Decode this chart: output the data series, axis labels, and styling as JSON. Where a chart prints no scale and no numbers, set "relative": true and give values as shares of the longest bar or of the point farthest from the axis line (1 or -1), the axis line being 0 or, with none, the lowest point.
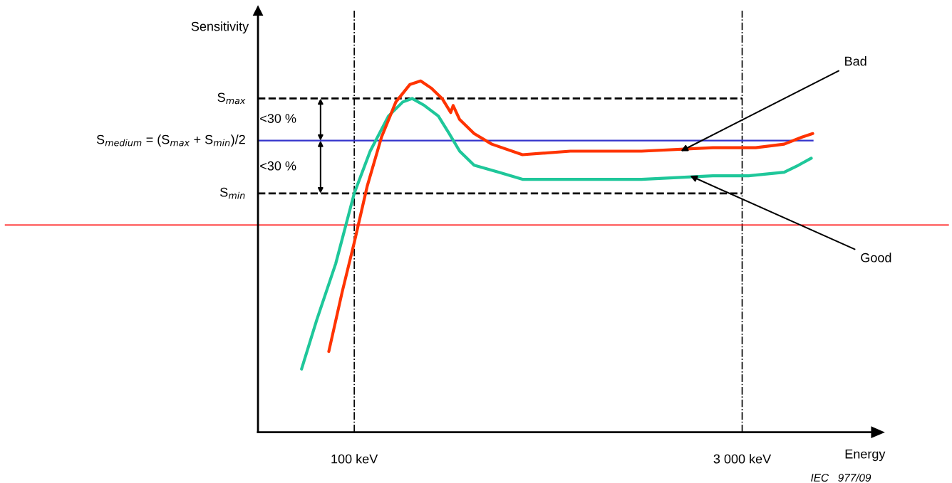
{
  "chart_data": {
    "type": "line",
    "relative": true,
    "ylabel": "Sensitivity",
    "xlabel": "Energy",
    "log": "x",
    "xlim": [
      43,
      9290
    ],
    "xticks": [
      {
        "value": 100,
        "label": "100 keV"
      },
      {
        "value": 3000,
        "label": "3 000 keV"
      }
    ],
    "series": [
      {
        "color": "#1fc79a",
        "x": [
          63,
          72,
          85,
          100,
          115,
          135,
          153,
          166,
          185,
          209,
          230,
          252,
          286,
          356,
          437,
          665,
          1242,
          2320,
          3172,
          4336,
          4914,
          5500
        ],
        "values": [
          0.18,
          0.32,
          0.48,
          0.68,
          0.8,
          0.9,
          0.94,
          0.95,
          0.93,
          0.9,
          0.85,
          0.8,
          0.76,
          0.74,
          0.72,
          0.72,
          0.72,
          0.73,
          0.73,
          0.74,
          0.76,
          0.78
        ]
      },
      {
        "color": "#ff3300",
        "x": [
          80,
          90,
          100,
          112,
          127,
          144,
          163,
          179,
          196,
          216,
          233,
          238,
          252,
          286,
          334,
          437,
          665,
          1242,
          2320,
          3378,
          4336,
          5070,
          5570
        ],
        "values": [
          0.23,
          0.4,
          0.54,
          0.7,
          0.84,
          0.94,
          0.99,
          1.0,
          0.98,
          0.95,
          0.91,
          0.93,
          0.89,
          0.85,
          0.82,
          0.79,
          0.8,
          0.8,
          0.81,
          0.81,
          0.82,
          0.84,
          0.85
        ]
      }
    ],
    "ref_lines": [
      {
        "axis": "x",
        "value": 100,
        "color": "#000000",
        "line_style": "dashdot"
      },
      {
        "axis": "x",
        "value": 3000,
        "color": "#000000",
        "line_style": "dashdot"
      },
      {
        "axis": "y",
        "value": 0.95,
        "label": "S$_{max}$",
        "color": "#000000",
        "line_style": "dashed"
      },
      {
        "axis": "y",
        "value": 0.83,
        "label": "S$_{medium}$ = (S$_{max}$ + S$_{min}$)/2",
        "color": "#3333cc",
        "line_style": "solid"
      },
      {
        "axis": "y",
        "value": 0.68,
        "label": "S$_{min}$",
        "color": "#000000",
        "line_style": "dashed"
      },
      {
        "axis": "y",
        "value": 0.59,
        "color": "#ff0000",
        "line_style": "solid"
      }
    ],
    "annotations": [
      "<30 %",
      "<30 %",
      {
        "text": "Bad",
        "x": 1752,
        "y": 0.8
      },
      {
        "text": "Good",
        "x": 1900,
        "y": 0.73
      },
      "IEC   977/09"
    ]
  }
}
